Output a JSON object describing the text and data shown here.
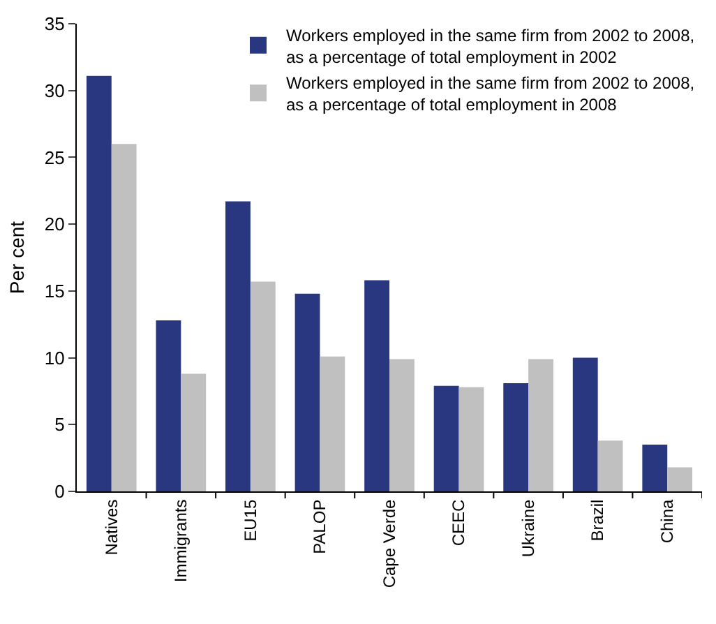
{
  "chart_data": {
    "type": "bar",
    "ylabel": "Per cent",
    "categories": [
      "Natives",
      "Immigrants",
      "EU15",
      "PALOP",
      "Cape Verde",
      "CEEC",
      "Ukraine",
      "Brazil",
      "China"
    ],
    "series": [
      {
        "name": "Workers employed in the same firm from 2002 to 2008,\nas a percentage of total employment in 2002",
        "color": "#293680",
        "values": [
          31.1,
          12.8,
          21.7,
          14.8,
          15.8,
          7.9,
          8.1,
          10.0,
          3.5
        ]
      },
      {
        "name": "Workers employed in the same firm from 2002 to 2008,\nas a percentage of total employment in 2008",
        "color": "#c0c0c0",
        "values": [
          26.0,
          8.8,
          15.7,
          10.1,
          9.9,
          7.8,
          9.9,
          3.8,
          1.8
        ]
      }
    ],
    "ylim": [
      0,
      35
    ],
    "yticks": [
      0,
      5,
      10,
      15,
      20,
      25,
      30,
      35
    ],
    "grid": false,
    "legend": "top right"
  }
}
